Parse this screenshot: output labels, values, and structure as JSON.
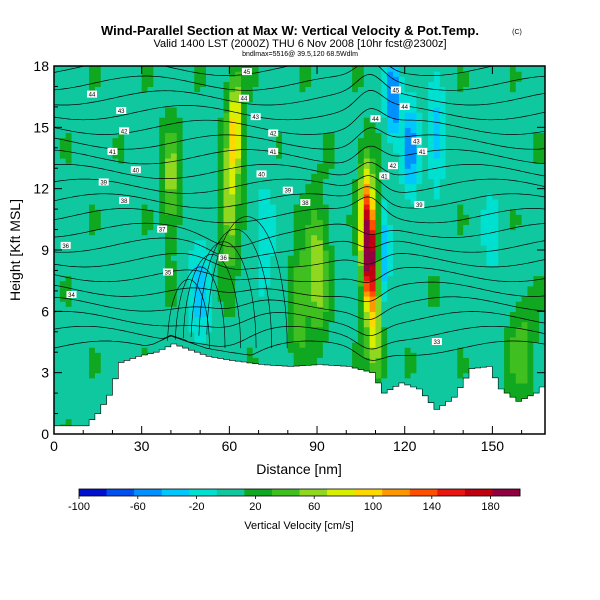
{
  "chart_data": {
    "type": "heatmap",
    "title": "Wind-Parallel Section at Max W: Vertical Velocity & Pot.Temp.",
    "title_mark": "(C)",
    "subtitle": "Valid 1400 LST (2000Z) THU 6 Nov 2008 [10hr fcst@2300z]",
    "subtitle2": "bndlmax=5516@ 39.5,120 68.5Wdlm",
    "xlabel": "Distance [nm]",
    "ylabel": "Height [Kft MSL]",
    "xlim": [
      0,
      168
    ],
    "ylim": [
      0,
      18
    ],
    "x_ticks": [
      "0",
      "30",
      "60",
      "90",
      "120",
      "150"
    ],
    "y_ticks": [
      "0",
      "3",
      "6",
      "9",
      "12",
      "15",
      "18"
    ],
    "colorbar": {
      "label": "Vertical Velocity [cm/s]",
      "ticks": [
        "-100",
        "-60",
        "-20",
        "20",
        "60",
        "100",
        "140",
        "180"
      ],
      "min": -100,
      "max": 200,
      "colors": [
        "#0010d0",
        "#0050f0",
        "#0090ff",
        "#00c8ff",
        "#00e0d0",
        "#10c8a0",
        "#10a820",
        "#40c020",
        "#90d820",
        "#d8f000",
        "#ffd800",
        "#ff9800",
        "#ff5000",
        "#e81810",
        "#c00010",
        "#900040"
      ]
    },
    "terrain_kft": [
      {
        "x": 0,
        "h": 0.4
      },
      {
        "x": 10,
        "h": 0.4
      },
      {
        "x": 14,
        "h": 1.0
      },
      {
        "x": 18,
        "h": 1.9
      },
      {
        "x": 22,
        "h": 3.5
      },
      {
        "x": 28,
        "h": 3.8
      },
      {
        "x": 34,
        "h": 4.0
      },
      {
        "x": 40,
        "h": 4.4
      },
      {
        "x": 46,
        "h": 4.1
      },
      {
        "x": 52,
        "h": 3.8
      },
      {
        "x": 60,
        "h": 3.6
      },
      {
        "x": 70,
        "h": 3.4
      },
      {
        "x": 80,
        "h": 3.3
      },
      {
        "x": 90,
        "h": 3.4
      },
      {
        "x": 100,
        "h": 3.3
      },
      {
        "x": 108,
        "h": 3.0
      },
      {
        "x": 112,
        "h": 2.0
      },
      {
        "x": 118,
        "h": 2.5
      },
      {
        "x": 124,
        "h": 2.2
      },
      {
        "x": 130,
        "h": 1.2
      },
      {
        "x": 136,
        "h": 1.8
      },
      {
        "x": 142,
        "h": 3.2
      },
      {
        "x": 148,
        "h": 3.3
      },
      {
        "x": 152,
        "h": 2.2
      },
      {
        "x": 158,
        "h": 1.6
      },
      {
        "x": 164,
        "h": 2.0
      },
      {
        "x": 168,
        "h": 2.6
      }
    ],
    "w_features_cm_s": [
      {
        "x": 108,
        "z": 8.5,
        "w": 180,
        "sx": 2.2,
        "sz": 2.2
      },
      {
        "x": 107,
        "z": 11.0,
        "w": 110,
        "sx": 2.5,
        "sz": 2.5
      },
      {
        "x": 110,
        "z": 5.0,
        "w": 70,
        "sx": 3.0,
        "sz": 2.5
      },
      {
        "x": 62,
        "z": 15.0,
        "w": 90,
        "sx": 2.5,
        "sz": 2.5
      },
      {
        "x": 60,
        "z": 11.0,
        "w": 60,
        "sx": 2.5,
        "sz": 3.0
      },
      {
        "x": 90,
        "z": 8.0,
        "w": 60,
        "sx": 3.5,
        "sz": 3.0
      },
      {
        "x": 84,
        "z": 6.5,
        "w": 45,
        "sx": 2.5,
        "sz": 2.5
      },
      {
        "x": 116,
        "z": 16.5,
        "w": -80,
        "sx": 2.5,
        "sz": 2.0
      },
      {
        "x": 122,
        "z": 14.0,
        "w": -60,
        "sx": 3.0,
        "sz": 2.5
      },
      {
        "x": 131,
        "z": 14.5,
        "w": -45,
        "sx": 3.0,
        "sz": 2.5
      },
      {
        "x": 113,
        "z": 8.0,
        "w": -50,
        "sx": 2.0,
        "sz": 3.0
      },
      {
        "x": 50,
        "z": 7.0,
        "w": -40,
        "sx": 4.0,
        "sz": 3.0
      },
      {
        "x": 72,
        "z": 9.5,
        "w": -30,
        "sx": 3.5,
        "sz": 3.0
      },
      {
        "x": 22,
        "z": 7.5,
        "w": -20,
        "sx": 3.0,
        "sz": 2.5
      },
      {
        "x": 150,
        "z": 9.5,
        "w": -20,
        "sx": 4.0,
        "sz": 3.0
      },
      {
        "x": 40,
        "z": 12.5,
        "w": 50,
        "sx": 3.0,
        "sz": 2.5
      },
      {
        "x": 160,
        "z": 4.0,
        "w": 40,
        "sx": 4.0,
        "sz": 2.0
      }
    ],
    "theta_contour_labels": [
      {
        "x": 13,
        "z": 16.6,
        "t": "44"
      },
      {
        "x": 23,
        "z": 15.8,
        "t": "43"
      },
      {
        "x": 24,
        "z": 14.8,
        "t": "42"
      },
      {
        "x": 20,
        "z": 13.8,
        "t": "41"
      },
      {
        "x": 28,
        "z": 12.9,
        "t": "40"
      },
      {
        "x": 17,
        "z": 12.3,
        "t": "39"
      },
      {
        "x": 24,
        "z": 11.4,
        "t": "38"
      },
      {
        "x": 37,
        "z": 10.0,
        "t": "37"
      },
      {
        "x": 4,
        "z": 9.2,
        "t": "36"
      },
      {
        "x": 39,
        "z": 7.9,
        "t": "35"
      },
      {
        "x": 6,
        "z": 6.8,
        "t": "34"
      },
      {
        "x": 66,
        "z": 17.7,
        "t": "45"
      },
      {
        "x": 65,
        "z": 16.4,
        "t": "44"
      },
      {
        "x": 69,
        "z": 15.5,
        "t": "43"
      },
      {
        "x": 75,
        "z": 14.7,
        "t": "42"
      },
      {
        "x": 75,
        "z": 13.8,
        "t": "41"
      },
      {
        "x": 71,
        "z": 12.7,
        "t": "40"
      },
      {
        "x": 80,
        "z": 11.9,
        "t": "39"
      },
      {
        "x": 86,
        "z": 11.3,
        "t": "38"
      },
      {
        "x": 58,
        "z": 8.6,
        "t": "36"
      },
      {
        "x": 117,
        "z": 16.8,
        "t": "45"
      },
      {
        "x": 110,
        "z": 15.4,
        "t": "44"
      },
      {
        "x": 120,
        "z": 16.0,
        "t": "44"
      },
      {
        "x": 124,
        "z": 14.3,
        "t": "43"
      },
      {
        "x": 116,
        "z": 13.1,
        "t": "42"
      },
      {
        "x": 113,
        "z": 12.6,
        "t": "41"
      },
      {
        "x": 126,
        "z": 13.8,
        "t": "41"
      },
      {
        "x": 125,
        "z": 11.2,
        "t": "39"
      },
      {
        "x": 131,
        "z": 4.5,
        "t": "33"
      }
    ]
  }
}
